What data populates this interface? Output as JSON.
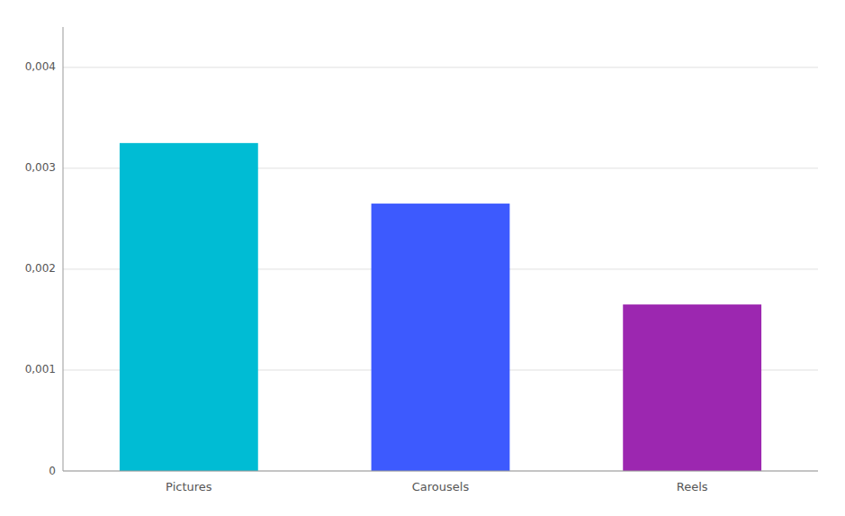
{
  "chart_data": {
    "type": "bar",
    "categories": [
      "Pictures",
      "Carousels",
      "Reels"
    ],
    "values": [
      0.00325,
      0.00265,
      0.00165
    ],
    "colors": [
      "#00BCD4",
      "#3D5AFE",
      "#9C27B0"
    ],
    "ylim": [
      0,
      0.0044
    ],
    "yticks": [
      0,
      {
        "value": 0.001,
        "label": "0,001"
      },
      {
        "value": 0.002,
        "label": "0,002"
      },
      {
        "value": 0.003,
        "label": "0,003"
      },
      {
        "value": 0.004,
        "label": "0,004"
      }
    ],
    "grid": true
  }
}
